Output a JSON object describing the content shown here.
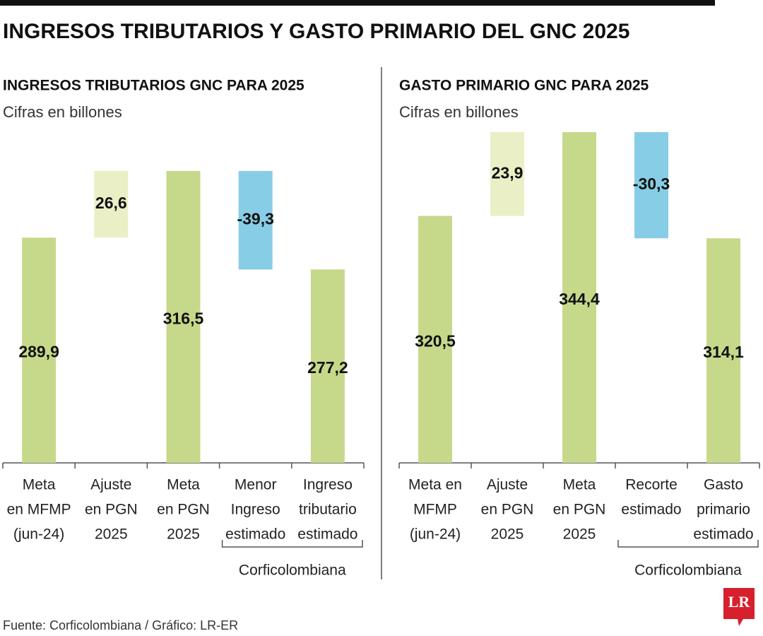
{
  "title": "INGRESOS TRIBUTARIOS Y GASTO PRIMARIO DEL GNC 2025",
  "source": "Fuente: Corficolombiana / Gráfico: LR-ER",
  "logo": "LR",
  "chart_data": [
    {
      "type": "waterfall",
      "title": "INGRESOS TRIBUTARIOS GNC PARA 2025",
      "subtitle": "Cifras en billones",
      "categories": [
        [
          "Meta",
          "en MFMP",
          "(jun-24)"
        ],
        [
          "Ajuste",
          "en PGN",
          "2025"
        ],
        [
          "Meta",
          "en PGN",
          "2025"
        ],
        [
          "Menor",
          "Ingreso",
          "estimado"
        ],
        [
          "Ingreso",
          "tributario",
          "estimado"
        ]
      ],
      "values": [
        289.9,
        26.6,
        316.5,
        -39.3,
        277.2
      ],
      "value_labels": [
        "289,9",
        "26,6",
        "316,5",
        "-39,3",
        "277,2"
      ],
      "measure": [
        "total",
        "relative",
        "total",
        "relative",
        "total"
      ],
      "colors": {
        "total": "#c6d98a",
        "increase": "#ebefc6",
        "decrease": "#87cde5"
      },
      "ylim": [
        200,
        332
      ],
      "annotation": "Corficolombiana"
    },
    {
      "type": "waterfall",
      "title": "GASTO PRIMARIO GNC PARA 2025",
      "subtitle": "Cifras en billones",
      "categories": [
        [
          "Meta en",
          "MFMP",
          "(jun-24)"
        ],
        [
          "Ajuste",
          "en PGN",
          "2025"
        ],
        [
          "Meta",
          "en PGN",
          "2025"
        ],
        [
          "Recorte",
          "estimado"
        ],
        [
          "Gasto",
          "primario",
          "estimado"
        ]
      ],
      "values": [
        320.5,
        23.9,
        344.4,
        -30.3,
        314.1
      ],
      "value_labels": [
        "320,5",
        "23,9",
        "344,4",
        "-30,3",
        "314,1"
      ],
      "measure": [
        "total",
        "relative",
        "total",
        "relative",
        "total"
      ],
      "colors": {
        "total": "#c6d98a",
        "increase": "#ebefc6",
        "decrease": "#87cde5"
      },
      "ylim": [
        250,
        344.4
      ],
      "annotation": "Corficolombiana"
    }
  ]
}
